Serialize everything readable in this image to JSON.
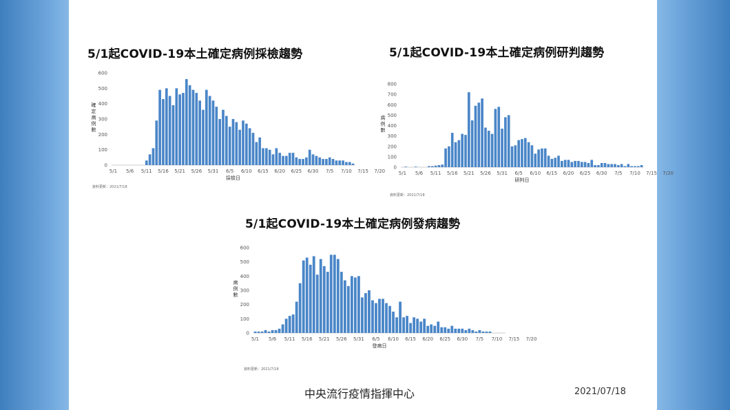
{
  "footer": {
    "center": "中央流行疫情指揮中心",
    "date": "2021/07/18"
  },
  "chart_data": [
    {
      "type": "bar",
      "title": "5/1起COVID-19本土確定病例採檢趨勢",
      "xlabel": "採檢日",
      "ylabel": "確定病例數",
      "source": "資料更新：2021/7/18",
      "ylim": [
        0,
        600
      ],
      "yticks": [
        0,
        100,
        200,
        300,
        400,
        500,
        600
      ],
      "x_tick_labels": [
        "5/1",
        "5/6",
        "5/11",
        "5/16",
        "5/21",
        "5/26",
        "5/31",
        "6/5",
        "6/10",
        "6/15",
        "6/20",
        "6/25",
        "6/30",
        "7/5",
        "7/10",
        "7/15",
        "7/20"
      ],
      "color": "#4a86c8",
      "values": [
        0,
        0,
        0,
        0,
        0,
        0,
        0,
        0,
        0,
        0,
        30,
        70,
        110,
        290,
        490,
        430,
        500,
        450,
        390,
        500,
        460,
        470,
        560,
        520,
        490,
        470,
        420,
        360,
        490,
        450,
        420,
        380,
        300,
        360,
        320,
        250,
        300,
        280,
        230,
        290,
        270,
        240,
        210,
        150,
        180,
        110,
        110,
        100,
        70,
        110,
        80,
        60,
        60,
        80,
        80,
        50,
        40,
        40,
        50,
        100,
        70,
        60,
        50,
        40,
        40,
        50,
        40,
        30,
        30,
        30,
        20,
        20,
        10
      ]
    },
    {
      "type": "bar",
      "title": "5/1起COVID-19本土確定病例研判趨勢",
      "xlabel": "研判日",
      "ylabel": "病例數",
      "source": "資料更新：2021/7/18",
      "ylim": [
        0,
        800
      ],
      "yticks": [
        0,
        100,
        200,
        300,
        400,
        500,
        600,
        700,
        800
      ],
      "x_tick_labels": [
        "5/1",
        "5/6",
        "5/11",
        "5/16",
        "5/21",
        "5/26",
        "5/31",
        "6/5",
        "6/10",
        "6/15",
        "6/20",
        "6/25",
        "6/30",
        "7/5",
        "7/10",
        "7/15",
        "7/20"
      ],
      "color": "#4a86c8",
      "values": [
        0,
        5,
        0,
        0,
        5,
        0,
        0,
        0,
        10,
        10,
        15,
        20,
        25,
        180,
        200,
        330,
        240,
        260,
        320,
        310,
        720,
        450,
        590,
        620,
        660,
        380,
        350,
        320,
        560,
        580,
        370,
        480,
        500,
        200,
        210,
        260,
        270,
        280,
        240,
        210,
        130,
        170,
        180,
        180,
        110,
        80,
        90,
        110,
        60,
        70,
        70,
        50,
        60,
        60,
        50,
        50,
        40,
        70,
        20,
        20,
        40,
        40,
        30,
        30,
        30,
        20,
        30,
        10,
        30,
        10,
        10,
        10,
        20
      ]
    },
    {
      "type": "bar",
      "title": "5/1起COVID-19本土確定病例發病趨勢",
      "xlabel": "發病日",
      "ylabel": "病例數",
      "source": "資料更新：2021/7/18",
      "ylim": [
        0,
        600
      ],
      "yticks": [
        0,
        100,
        200,
        300,
        400,
        500,
        600
      ],
      "x_tick_labels": [
        "5/1",
        "5/6",
        "5/11",
        "5/16",
        "5/21",
        "5/26",
        "5/31",
        "6/5",
        "6/10",
        "6/15",
        "6/20",
        "6/25",
        "6/30",
        "7/5",
        "7/10",
        "7/15",
        "7/20"
      ],
      "color": "#4a86c8",
      "values": [
        10,
        10,
        10,
        20,
        10,
        20,
        20,
        30,
        60,
        100,
        120,
        130,
        220,
        350,
        510,
        530,
        480,
        540,
        410,
        520,
        470,
        430,
        550,
        550,
        520,
        430,
        370,
        330,
        400,
        390,
        400,
        250,
        280,
        300,
        230,
        210,
        240,
        240,
        210,
        190,
        150,
        110,
        220,
        110,
        120,
        70,
        110,
        100,
        80,
        100,
        50,
        60,
        50,
        80,
        40,
        40,
        30,
        50,
        30,
        30,
        30,
        20,
        30,
        20,
        10,
        20,
        10,
        10,
        10,
        0,
        0,
        0,
        0
      ]
    }
  ]
}
